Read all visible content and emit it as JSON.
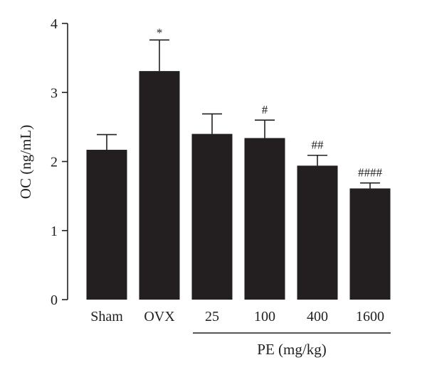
{
  "chart_data": {
    "type": "bar",
    "title": "",
    "ylabel": "OC (ng/mL)",
    "xlabel": "",
    "group_label": "PE (mg/kg)",
    "categories": [
      "Sham",
      "OVX",
      "25",
      "100",
      "400",
      "1600"
    ],
    "values": [
      2.17,
      3.31,
      2.4,
      2.34,
      1.94,
      1.61
    ],
    "errors": [
      0.22,
      0.45,
      0.29,
      0.26,
      0.15,
      0.08
    ],
    "annotations": [
      "",
      "*",
      "",
      "#",
      "##",
      "####"
    ],
    "ylim": [
      0,
      4
    ],
    "yticks": [
      "0",
      "1",
      "2",
      "3",
      "4"
    ],
    "grid": false,
    "bar_color": "#231f20"
  }
}
